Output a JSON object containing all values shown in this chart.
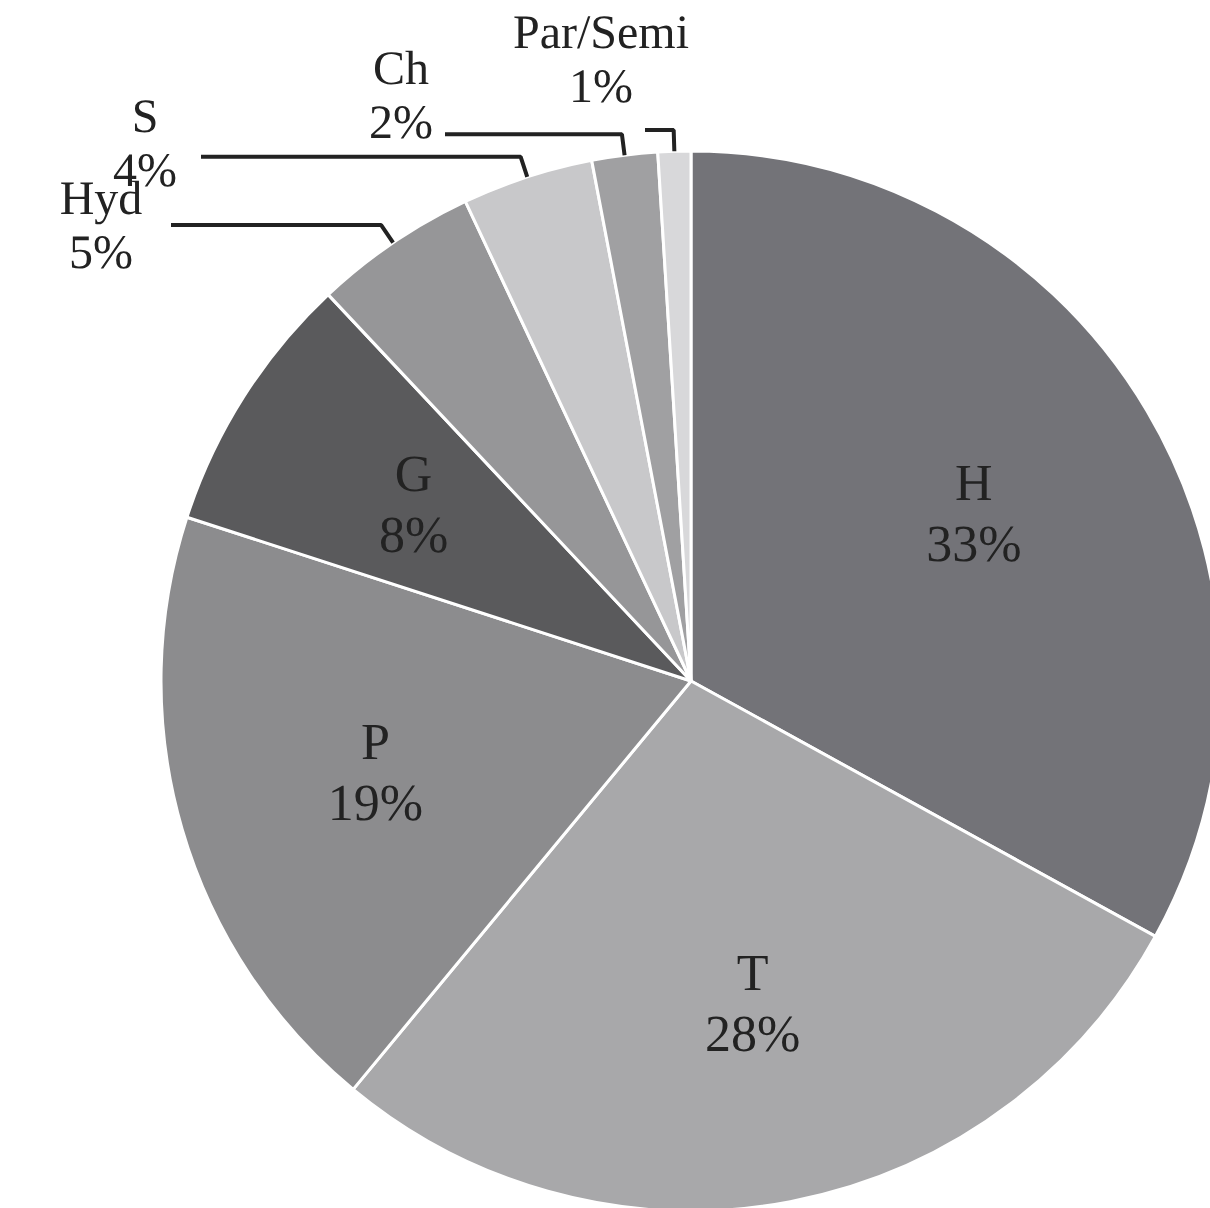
{
  "chart_data": {
    "type": "pie",
    "categories": [
      "H",
      "T",
      "P",
      "G",
      "Hyd",
      "S",
      "Ch",
      "Par/Semi"
    ],
    "values": [
      33,
      28,
      19,
      8,
      5,
      4,
      2,
      1
    ],
    "value_labels": [
      "33%",
      "28%",
      "19%",
      "8%",
      "5%",
      "4%",
      "2%",
      "1%"
    ],
    "colors": [
      "#737378",
      "#a8a8aa",
      "#8c8c8e",
      "#5a5a5c",
      "#969698",
      "#c8c8ca",
      "#a0a0a2",
      "#d8d8da"
    ],
    "legend": false
  }
}
